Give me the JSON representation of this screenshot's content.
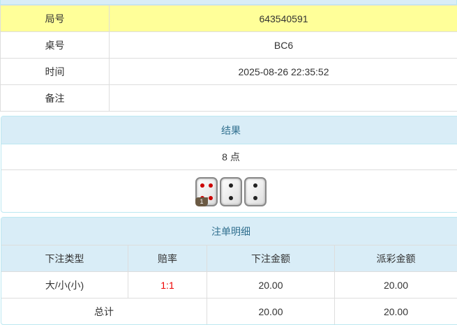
{
  "info": {
    "rows": [
      {
        "label": "局号",
        "value": "643540591"
      },
      {
        "label": "桌号",
        "value": "BC6"
      },
      {
        "label": "时间",
        "value": "2025-08-26 22:35:52"
      },
      {
        "label": "备注",
        "value": ""
      }
    ]
  },
  "result": {
    "title": "结果",
    "points": "8 点",
    "dice": [
      4,
      2,
      2
    ],
    "badge": "1"
  },
  "bets": {
    "title": "注单明细",
    "headers": [
      "下注类型",
      "赔率",
      "下注金额",
      "派彩金额"
    ],
    "rows": [
      {
        "type": "大/小(小)",
        "odds": "1:1",
        "amount": "20.00",
        "payout": "20.00"
      }
    ],
    "total": {
      "label": "总计",
      "amount": "20.00",
      "payout": "20.00"
    }
  },
  "colors": {
    "highlight": "#ffff99",
    "header": "#d9edf7",
    "odds": "#ee0000"
  }
}
